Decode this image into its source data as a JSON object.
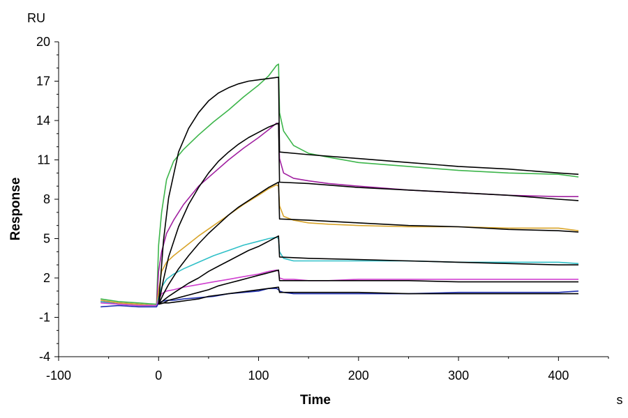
{
  "chart_data": {
    "type": "line",
    "xlabel": "Time",
    "ylabel": "Response",
    "x_unit": "s",
    "y_unit": "RU",
    "xlim": [
      -100,
      450
    ],
    "ylim": [
      -4,
      20
    ],
    "x_ticks": [
      -100,
      0,
      100,
      200,
      300,
      400
    ],
    "y_ticks": [
      -4,
      -1,
      2,
      5,
      8,
      11,
      14,
      17,
      20
    ],
    "grid": false,
    "legend": "none",
    "association_end": 120,
    "series": [
      {
        "color": "#3cb54a",
        "measured": {
          "x": [
            -58,
            -40,
            -20,
            -2,
            0,
            3,
            8,
            15,
            25,
            40,
            55,
            70,
            85,
            100,
            110,
            118,
            120,
            121,
            125,
            135,
            150,
            170,
            200,
            250,
            300,
            350,
            400,
            420
          ],
          "y": [
            0.4,
            0.2,
            0.1,
            0.0,
            4.5,
            7.0,
            9.5,
            10.9,
            11.8,
            12.9,
            13.9,
            14.8,
            15.8,
            16.7,
            17.4,
            18.2,
            18.3,
            14.6,
            13.2,
            12.1,
            11.5,
            11.2,
            10.8,
            10.5,
            10.2,
            10.0,
            9.9,
            9.7
          ]
        },
        "fit": {
          "x": [
            0,
            5,
            10,
            20,
            30,
            40,
            50,
            60,
            70,
            80,
            90,
            100,
            110,
            120,
            121,
            150,
            200,
            250,
            300,
            350,
            400,
            420
          ],
          "y": [
            0.0,
            4.9,
            8.1,
            11.6,
            13.4,
            14.6,
            15.5,
            16.1,
            16.5,
            16.8,
            17.0,
            17.1,
            17.2,
            17.3,
            11.6,
            11.4,
            11.1,
            10.8,
            10.5,
            10.3,
            10.0,
            9.9
          ]
        }
      },
      {
        "color": "#a020a0",
        "measured": {
          "x": [
            -58,
            -40,
            -20,
            -2,
            0,
            3,
            8,
            15,
            25,
            40,
            55,
            70,
            85,
            100,
            110,
            118,
            120,
            121,
            125,
            135,
            150,
            170,
            200,
            250,
            300,
            350,
            400,
            420
          ],
          "y": [
            0.2,
            0.1,
            0.0,
            -0.1,
            2.5,
            4.0,
            5.4,
            6.4,
            7.6,
            9.0,
            10.0,
            11.0,
            11.9,
            12.7,
            13.3,
            13.8,
            13.7,
            11.1,
            10.0,
            9.6,
            9.4,
            9.2,
            9.0,
            8.7,
            8.5,
            8.3,
            8.2,
            8.2
          ]
        },
        "fit": {
          "x": [
            0,
            5,
            10,
            20,
            30,
            40,
            50,
            60,
            70,
            80,
            90,
            100,
            110,
            120,
            121,
            150,
            200,
            250,
            300,
            350,
            400,
            420
          ],
          "y": [
            0.0,
            1.9,
            3.6,
            5.9,
            7.6,
            8.9,
            10.0,
            10.9,
            11.6,
            12.2,
            12.7,
            13.1,
            13.5,
            13.8,
            9.3,
            9.2,
            8.9,
            8.7,
            8.5,
            8.3,
            8.0,
            7.9
          ]
        }
      },
      {
        "color": "#d8a42a",
        "measured": {
          "x": [
            -58,
            -40,
            -20,
            -2,
            0,
            3,
            8,
            15,
            25,
            40,
            55,
            70,
            85,
            100,
            110,
            118,
            120,
            121,
            125,
            135,
            150,
            170,
            200,
            250,
            300,
            350,
            400,
            420
          ],
          "y": [
            0.3,
            0.1,
            0.0,
            -0.1,
            1.0,
            2.5,
            3.2,
            3.7,
            4.3,
            5.2,
            6.0,
            6.8,
            7.6,
            8.3,
            8.8,
            9.1,
            9.0,
            7.5,
            6.7,
            6.4,
            6.2,
            6.1,
            6.0,
            5.9,
            5.9,
            5.8,
            5.8,
            5.6
          ]
        },
        "fit": {
          "x": [
            0,
            5,
            10,
            20,
            30,
            40,
            50,
            60,
            70,
            80,
            90,
            100,
            110,
            120,
            121,
            150,
            200,
            250,
            300,
            350,
            400,
            420
          ],
          "y": [
            0.0,
            0.8,
            1.5,
            2.7,
            3.7,
            4.6,
            5.4,
            6.1,
            6.8,
            7.4,
            7.9,
            8.4,
            8.9,
            9.3,
            6.5,
            6.4,
            6.2,
            6.0,
            5.9,
            5.7,
            5.6,
            5.5
          ]
        }
      },
      {
        "color": "#30c0c8",
        "measured": {
          "x": [
            -58,
            -40,
            -20,
            -2,
            0,
            3,
            8,
            15,
            25,
            40,
            55,
            70,
            85,
            100,
            110,
            118,
            120,
            121,
            125,
            135,
            150,
            170,
            200,
            250,
            300,
            350,
            400,
            420
          ],
          "y": [
            0.2,
            0.0,
            -0.1,
            -0.1,
            0.5,
            1.3,
            1.9,
            2.3,
            2.7,
            3.2,
            3.7,
            4.1,
            4.5,
            4.8,
            5.0,
            5.1,
            5.0,
            4.0,
            3.5,
            3.3,
            3.3,
            3.3,
            3.3,
            3.3,
            3.2,
            3.2,
            3.2,
            3.1
          ]
        },
        "fit": {
          "x": [
            0,
            5,
            10,
            20,
            30,
            40,
            50,
            60,
            70,
            80,
            90,
            100,
            110,
            120,
            121,
            150,
            200,
            250,
            300,
            350,
            400,
            420
          ],
          "y": [
            0.0,
            0.3,
            0.6,
            1.1,
            1.6,
            2.0,
            2.5,
            2.9,
            3.3,
            3.7,
            4.1,
            4.4,
            4.8,
            5.2,
            3.6,
            3.5,
            3.4,
            3.3,
            3.2,
            3.1,
            3.0,
            3.0
          ]
        }
      },
      {
        "color": "#d040d0",
        "measured": {
          "x": [
            -58,
            -40,
            -20,
            -2,
            0,
            3,
            8,
            15,
            25,
            40,
            55,
            70,
            85,
            100,
            110,
            118,
            120,
            121,
            125,
            135,
            150,
            170,
            200,
            250,
            300,
            350,
            400,
            420
          ],
          "y": [
            0.1,
            0.0,
            -0.1,
            -0.1,
            0.3,
            0.8,
            1.0,
            1.1,
            1.3,
            1.5,
            1.7,
            1.9,
            2.1,
            2.3,
            2.5,
            2.6,
            2.5,
            2.0,
            1.9,
            1.9,
            1.8,
            1.8,
            1.9,
            1.9,
            1.9,
            1.9,
            1.9,
            1.9
          ]
        },
        "fit": {
          "x": [
            0,
            5,
            10,
            20,
            30,
            40,
            50,
            60,
            70,
            80,
            90,
            100,
            110,
            120,
            121,
            150,
            200,
            250,
            300,
            350,
            400,
            420
          ],
          "y": [
            0.0,
            0.1,
            0.3,
            0.5,
            0.7,
            0.9,
            1.1,
            1.4,
            1.6,
            1.8,
            2.0,
            2.2,
            2.4,
            2.6,
            1.8,
            1.8,
            1.8,
            1.8,
            1.7,
            1.7,
            1.7,
            1.7
          ]
        }
      },
      {
        "color": "#2030b0",
        "measured": {
          "x": [
            -58,
            -40,
            -20,
            -2,
            0,
            3,
            8,
            15,
            25,
            40,
            55,
            70,
            85,
            100,
            110,
            118,
            120,
            121,
            125,
            135,
            150,
            170,
            200,
            250,
            300,
            350,
            400,
            420
          ],
          "y": [
            -0.2,
            -0.1,
            -0.2,
            -0.2,
            0.1,
            0.2,
            0.3,
            0.3,
            0.4,
            0.5,
            0.6,
            0.8,
            0.9,
            1.0,
            1.2,
            1.2,
            1.1,
            1.0,
            0.9,
            0.8,
            0.8,
            0.8,
            0.8,
            0.8,
            0.9,
            0.9,
            0.9,
            1.0
          ]
        },
        "fit": {
          "x": [
            0,
            5,
            10,
            20,
            30,
            40,
            50,
            60,
            70,
            80,
            90,
            100,
            110,
            120,
            121,
            150,
            200,
            250,
            300,
            350,
            400,
            420
          ],
          "y": [
            0.0,
            0.1,
            0.1,
            0.2,
            0.3,
            0.4,
            0.6,
            0.7,
            0.8,
            0.9,
            1.0,
            1.1,
            1.2,
            1.3,
            0.9,
            0.9,
            0.9,
            0.8,
            0.8,
            0.8,
            0.8,
            0.8
          ]
        }
      }
    ]
  }
}
